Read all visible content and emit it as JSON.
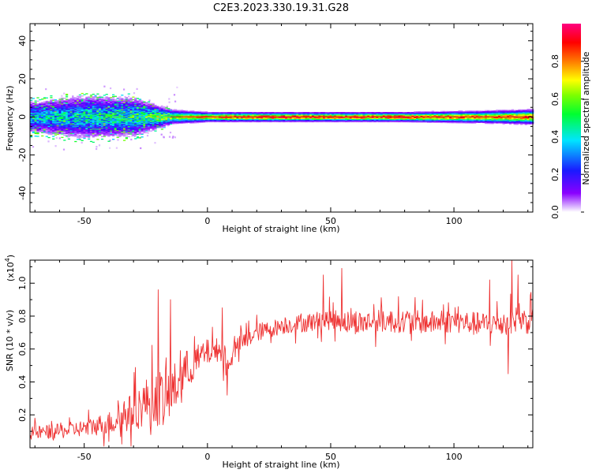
{
  "title": "C2E3.2023.330.19.31.G28",
  "chart_data": [
    {
      "type": "heatmap",
      "panel": "spectrogram",
      "title": "C2E3.2023.330.19.31.G28",
      "xlabel": "Height of straight line (km)",
      "ylabel": "Frequency (Hz)",
      "xlim": [
        -72,
        132
      ],
      "ylim": [
        -50,
        49
      ],
      "xticks": [
        -50,
        0,
        50,
        100
      ],
      "yticks": [
        -40,
        -20,
        0,
        20,
        40
      ],
      "colorbar": {
        "label": "Normalized spectral amplitude",
        "range": [
          0.0,
          1.0
        ],
        "ticks": [
          0.0,
          0.2,
          0.4,
          0.6,
          0.8
        ],
        "tick_labels": [
          "0.0",
          "0.2",
          "0.4",
          "0.6",
          "0.8"
        ],
        "colormap": "rainbow (white-violet-blue-cyan-green-yellow-red-magenta)"
      },
      "ridge_frequency_hz": 0,
      "ridge": {
        "description": "Broad noisy band (about -10 to +10 Hz) below -15 km, narrowing to a tight ridge near 0 Hz above about -15 km with amplitude rising toward 0.9",
        "x": [
          -70,
          -50,
          -30,
          -15,
          0,
          20,
          50,
          80,
          110,
          130
        ],
        "halfwidth_hz": [
          7,
          9,
          8,
          3,
          2,
          2,
          2,
          2,
          2.5,
          3
        ],
        "peak_amplitude": [
          0.35,
          0.4,
          0.45,
          0.6,
          0.8,
          0.9,
          0.85,
          0.9,
          0.8,
          0.85
        ]
      }
    },
    {
      "type": "line",
      "panel": "snr",
      "xlabel": "Height of straight line (km)",
      "ylabel": "SNR (10 * v/v)",
      "y_multiplier_label": "(x10",
      "y_multiplier_exp": "4",
      "y_multiplier_close": ")",
      "xlim": [
        -72,
        132
      ],
      "ylim": [
        0,
        1.14
      ],
      "xticks": [
        -50,
        0,
        50,
        100
      ],
      "yticks": [
        0.2,
        0.4,
        0.6,
        0.8,
        1.0
      ],
      "color": "#ee3333",
      "trend": {
        "x": [
          -72,
          -60,
          -50,
          -40,
          -30,
          -25,
          -20,
          -15,
          -10,
          -5,
          0,
          5,
          8,
          10,
          15,
          20,
          30,
          40,
          50,
          60,
          70,
          80,
          90,
          100,
          110,
          120,
          125,
          130,
          132
        ],
        "y": [
          0.09,
          0.1,
          0.12,
          0.15,
          0.22,
          0.28,
          0.3,
          0.32,
          0.45,
          0.52,
          0.58,
          0.6,
          0.48,
          0.58,
          0.65,
          0.7,
          0.74,
          0.76,
          0.78,
          0.76,
          0.77,
          0.77,
          0.76,
          0.77,
          0.75,
          0.76,
          0.78,
          0.77,
          0.77
        ]
      },
      "noise_amplitude": {
        "x": [
          -72,
          -50,
          -40,
          -30,
          -20,
          -12,
          -5,
          0,
          10,
          30,
          60,
          100,
          132
        ],
        "y": [
          0.04,
          0.05,
          0.07,
          0.12,
          0.17,
          0.15,
          0.1,
          0.08,
          0.06,
          0.05,
          0.07,
          0.07,
          0.08
        ]
      },
      "spikes": [
        {
          "x": -20,
          "y": 0.96
        },
        {
          "x": -18,
          "y": 0.14
        },
        {
          "x": -15,
          "y": 0.9
        },
        {
          "x": -23,
          "y": 0.08
        },
        {
          "x": 8,
          "y": 0.32
        },
        {
          "x": 6,
          "y": 0.85
        },
        {
          "x": 54.5,
          "y": 1.09
        },
        {
          "x": 47,
          "y": 1.05
        },
        {
          "x": 114.5,
          "y": 1.02
        },
        {
          "x": 123.5,
          "y": 1.14
        },
        {
          "x": 126,
          "y": 1.05
        },
        {
          "x": 122,
          "y": 0.45
        }
      ]
    }
  ]
}
